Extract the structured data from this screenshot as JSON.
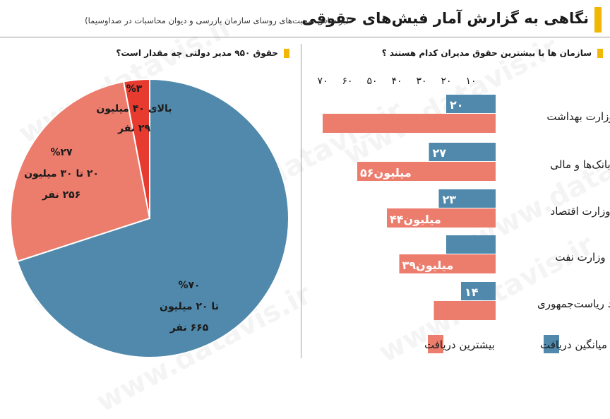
{
  "header": {
    "title": "نگاهی به گزارش آمار فیش‌های حقوقی",
    "subtitle": "(براساس صحبت‌های روسای سازمان بازرسی و دیوان محاسبات در صداوسیما)"
  },
  "watermark": "www.datavis.ir",
  "colors": {
    "accent": "#f2b705",
    "blue": "#5089ab",
    "salmon": "#ec7d6d",
    "red": "#e63b2e"
  },
  "chart_data": [
    {
      "type": "bar",
      "title": "سازمان ها با بیشترین حقوق مدیران کدام هستند ؟",
      "categories": [
        "وزارت بهداشت",
        "بانک‌ها و مالی",
        "وزارت اقتصاد",
        "وزارت نفت",
        "نهاد ریاست‌جمهوری"
      ],
      "series": [
        {
          "name": "میانگین دریافت",
          "color": "#5089ab",
          "values": [
            20,
            27,
            23,
            20,
            14
          ],
          "labels": [
            "۲۰",
            "۲۷",
            "۲۳",
            "",
            "۱۴"
          ]
        },
        {
          "name": "بیشترین دریافت",
          "color": "#ec7d6d",
          "values": [
            70,
            56,
            44,
            39,
            25
          ],
          "labels": [
            "",
            "۵۶میلیون",
            "۴۴میلیون",
            "۳۹میلیون",
            ""
          ]
        }
      ],
      "xticks": [
        70,
        60,
        50,
        40,
        30,
        20,
        10
      ],
      "xtick_labels": [
        "۷۰",
        "۶۰",
        "۵۰",
        "۴۰",
        "۳۰",
        "۲۰",
        "۱۰"
      ],
      "xlim": [
        0,
        70
      ],
      "legend": "bottom"
    },
    {
      "type": "pie",
      "title": "حقوق ۹۵۰ مدیر دولتی چه مقدار است؟",
      "slices": [
        {
          "percent": 70,
          "count": 665,
          "color": "#5089ab",
          "label_lines": [
            "%۷۰",
            "تا ۲۰ میلیون",
            "۶۶۵ نفر"
          ]
        },
        {
          "percent": 27,
          "count": 256,
          "color": "#ec7d6d",
          "label_lines": [
            "%۲۷",
            "۲۰ تا ۳۰ میلیون",
            "۲۵۶ نفر"
          ]
        },
        {
          "percent": 3,
          "count": 29,
          "color": "#e63b2e",
          "label_lines": [
            "%۳",
            "بالای ۴۰ میلیون",
            "۲۹ نفر"
          ]
        }
      ]
    }
  ]
}
